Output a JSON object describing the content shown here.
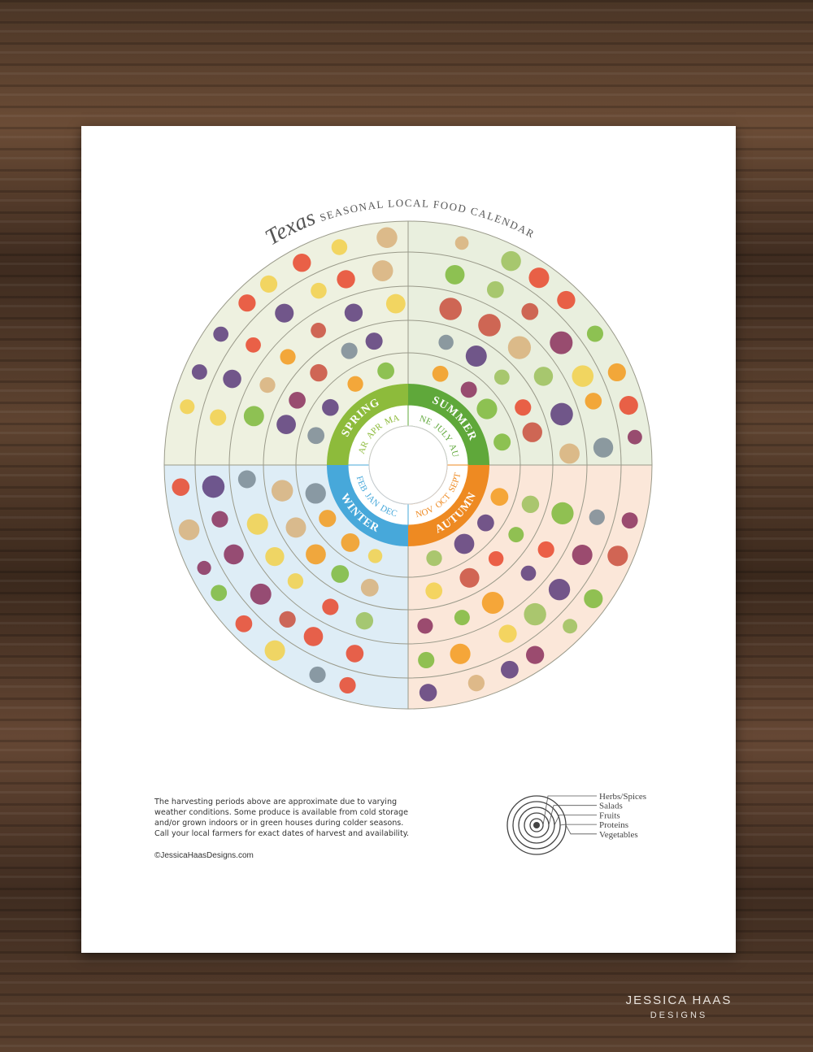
{
  "title": {
    "script": "Texas",
    "main": "SEASONAL LOCAL FOOD CALENDAR"
  },
  "seasons": [
    {
      "name": "SPRING",
      "months": [
        "MAR",
        "APR",
        "MAY"
      ]
    },
    {
      "name": "SUMMER",
      "months": [
        "JUNE",
        "JULY",
        "AUG"
      ]
    },
    {
      "name": "AUTUMN",
      "months": [
        "NOV",
        "OCT",
        "SEPT"
      ]
    },
    {
      "name": "WINTER",
      "months": [
        "FEB",
        "JAN",
        "DEC"
      ]
    }
  ],
  "note": [
    "The harvesting periods above are approximate due to varying",
    "weather conditions. Some produce is available from cold storage",
    "and/or grown indoors or in green houses during colder seasons.",
    "Call your local farmers for exact dates of harvest and availability."
  ],
  "copyright": "©JessicaHaasDesigns.com",
  "legend": [
    "Herbs/Spices",
    "Salads",
    "Fruits",
    "Proteins",
    "Vegetables"
  ],
  "brand": {
    "name": "JESSICA HAAS",
    "sub": "DESIGNS"
  }
}
